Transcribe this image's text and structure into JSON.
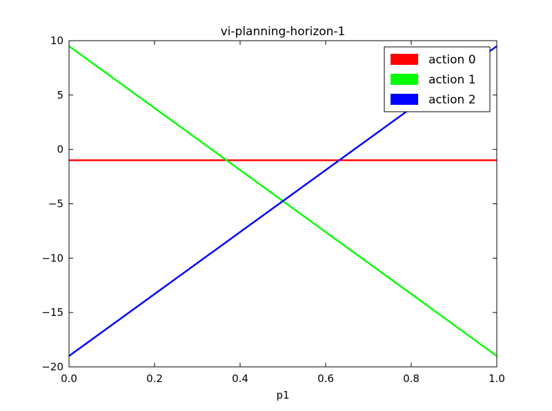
{
  "chart_data": {
    "type": "line",
    "title": "vi-planning-horizon-1",
    "xlabel": "p1",
    "ylabel": "",
    "xlim": [
      0.0,
      1.0
    ],
    "ylim": [
      -20,
      10
    ],
    "x_ticks": [
      0.0,
      0.2,
      0.4,
      0.6,
      0.8,
      1.0
    ],
    "x_tick_labels": [
      "0.0",
      "0.2",
      "0.4",
      "0.6",
      "0.8",
      "1.0"
    ],
    "y_ticks": [
      10,
      5,
      0,
      -5,
      -10,
      -15,
      -20
    ],
    "y_tick_labels": [
      "10",
      "5",
      "0",
      "−5",
      "−10",
      "−15",
      "−20"
    ],
    "grid": false,
    "legend_position": "top-right",
    "series": [
      {
        "name": "action 0",
        "color": "#ff0000",
        "x": [
          0.0,
          1.0
        ],
        "y": [
          -1.0,
          -1.0
        ]
      },
      {
        "name": "action 1",
        "color": "#00ff00",
        "x": [
          0.0,
          1.0
        ],
        "y": [
          9.5,
          -19.0
        ]
      },
      {
        "name": "action 2",
        "color": "#0000ff",
        "x": [
          0.0,
          1.0
        ],
        "y": [
          -19.0,
          9.5
        ]
      }
    ]
  }
}
